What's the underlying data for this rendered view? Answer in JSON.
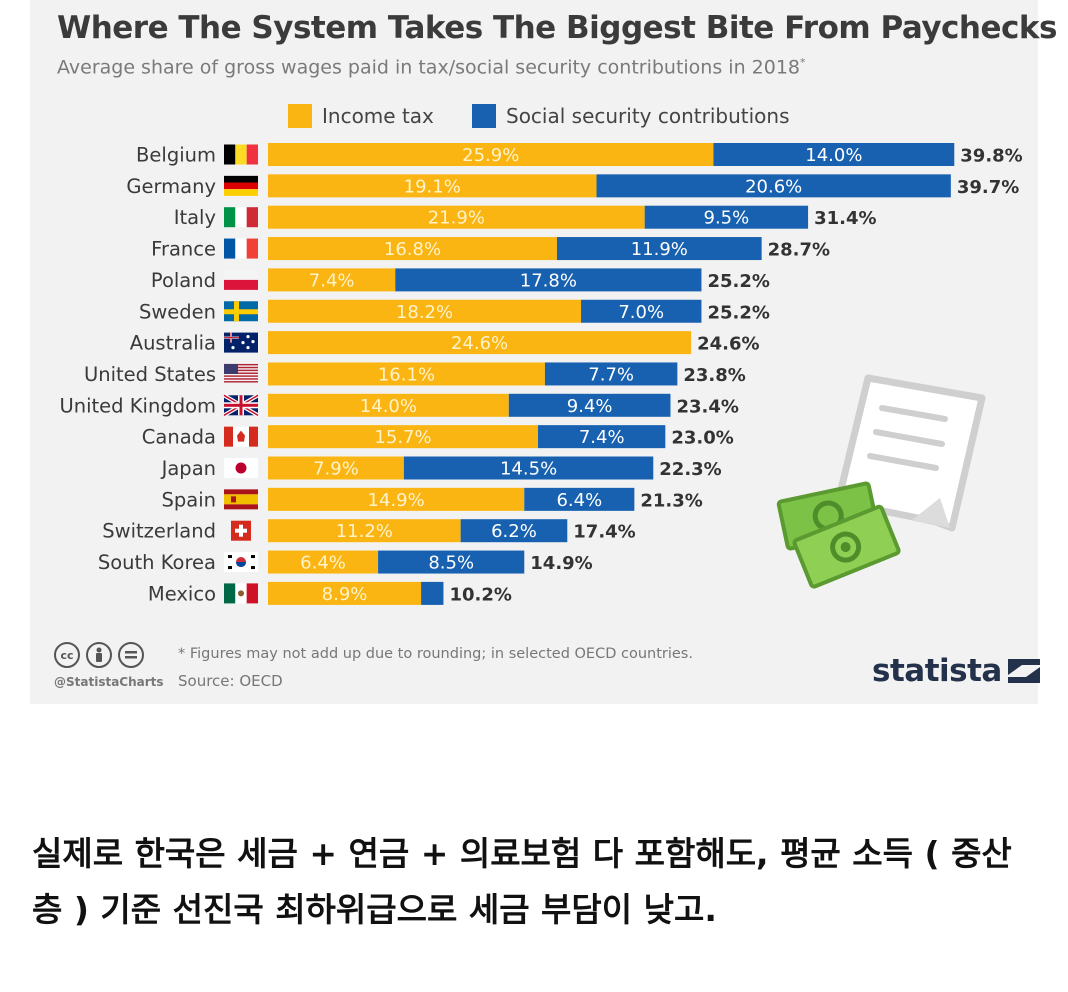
{
  "header": {
    "title": "Where The System Takes The Biggest Bite From Paychecks",
    "subtitle": "Average share of gross wages paid in tax/social security contributions in 2018",
    "subtitle_mark": "*"
  },
  "legend": {
    "income_tax": "Income tax",
    "social_security": "Social security contributions"
  },
  "colors": {
    "income_tax": "#fbb513",
    "social_security": "#1761b0",
    "total_label": "#333333"
  },
  "chart_data": {
    "type": "bar",
    "orientation": "horizontal",
    "stacked": true,
    "title": "Where The System Takes The Biggest Bite From Paychecks",
    "subtitle": "Average share of gross wages paid in tax/social security contributions in 2018*",
    "categories": [
      "Belgium",
      "Germany",
      "Italy",
      "France",
      "Poland",
      "Sweden",
      "Australia",
      "United States",
      "United Kingdom",
      "Canada",
      "Japan",
      "Spain",
      "Switzerland",
      "South Korea",
      "Mexico"
    ],
    "flags": [
      "belgium-flag-icon",
      "germany-flag-icon",
      "italy-flag-icon",
      "france-flag-icon",
      "poland-flag-icon",
      "sweden-flag-icon",
      "australia-flag-icon",
      "united-states-flag-icon",
      "united-kingdom-flag-icon",
      "canada-flag-icon",
      "japan-flag-icon",
      "spain-flag-icon",
      "switzerland-flag-icon",
      "south-korea-flag-icon",
      "mexico-flag-icon"
    ],
    "series": [
      {
        "name": "Income tax",
        "values": [
          25.9,
          19.1,
          21.9,
          16.8,
          7.4,
          18.2,
          24.6,
          16.1,
          14.0,
          15.7,
          7.9,
          14.9,
          11.2,
          6.4,
          8.9
        ]
      },
      {
        "name": "Social security contributions",
        "values": [
          14.0,
          20.6,
          9.5,
          11.9,
          17.8,
          7.0,
          0,
          7.7,
          9.4,
          7.4,
          14.5,
          6.4,
          6.2,
          8.5,
          1.3
        ]
      }
    ],
    "segment_labels": [
      [
        "25.9%",
        "14.0%"
      ],
      [
        "19.1%",
        "20.6%"
      ],
      [
        "21.9%",
        "9.5%"
      ],
      [
        "16.8%",
        "11.9%"
      ],
      [
        "7.4%",
        "17.8%"
      ],
      [
        "18.2%",
        "7.0%"
      ],
      [
        "24.6%",
        ""
      ],
      [
        "16.1%",
        "7.7%"
      ],
      [
        "14.0%",
        "9.4%"
      ],
      [
        "15.7%",
        "7.4%"
      ],
      [
        "7.9%",
        "14.5%"
      ],
      [
        "14.9%",
        "6.4%"
      ],
      [
        "11.2%",
        "6.2%"
      ],
      [
        "6.4%",
        "8.5%"
      ],
      [
        "8.9%",
        ""
      ]
    ],
    "totals": [
      "39.8%",
      "39.7%",
      "31.4%",
      "28.7%",
      "25.2%",
      "25.2%",
      "24.6%",
      "23.8%",
      "23.4%",
      "23.0%",
      "22.3%",
      "21.3%",
      "17.4%",
      "14.9%",
      "10.2%"
    ],
    "xlim": [
      0,
      40
    ],
    "legend_position": "top"
  },
  "footer": {
    "footnote": "* Figures may not add up due to rounding; in selected OECD countries.",
    "source": "Source: OECD",
    "handle": "@StatistaCharts",
    "brand": "statista",
    "cc_icons": [
      "cc",
      "by",
      "nd"
    ]
  },
  "caption": "실제로 한국은 세금 + 연금 + 의료보험 다 포함해도, 평균 소득 ( 중산층 ) 기준 선진국 최하위급으로 세금 부담이 낮고."
}
